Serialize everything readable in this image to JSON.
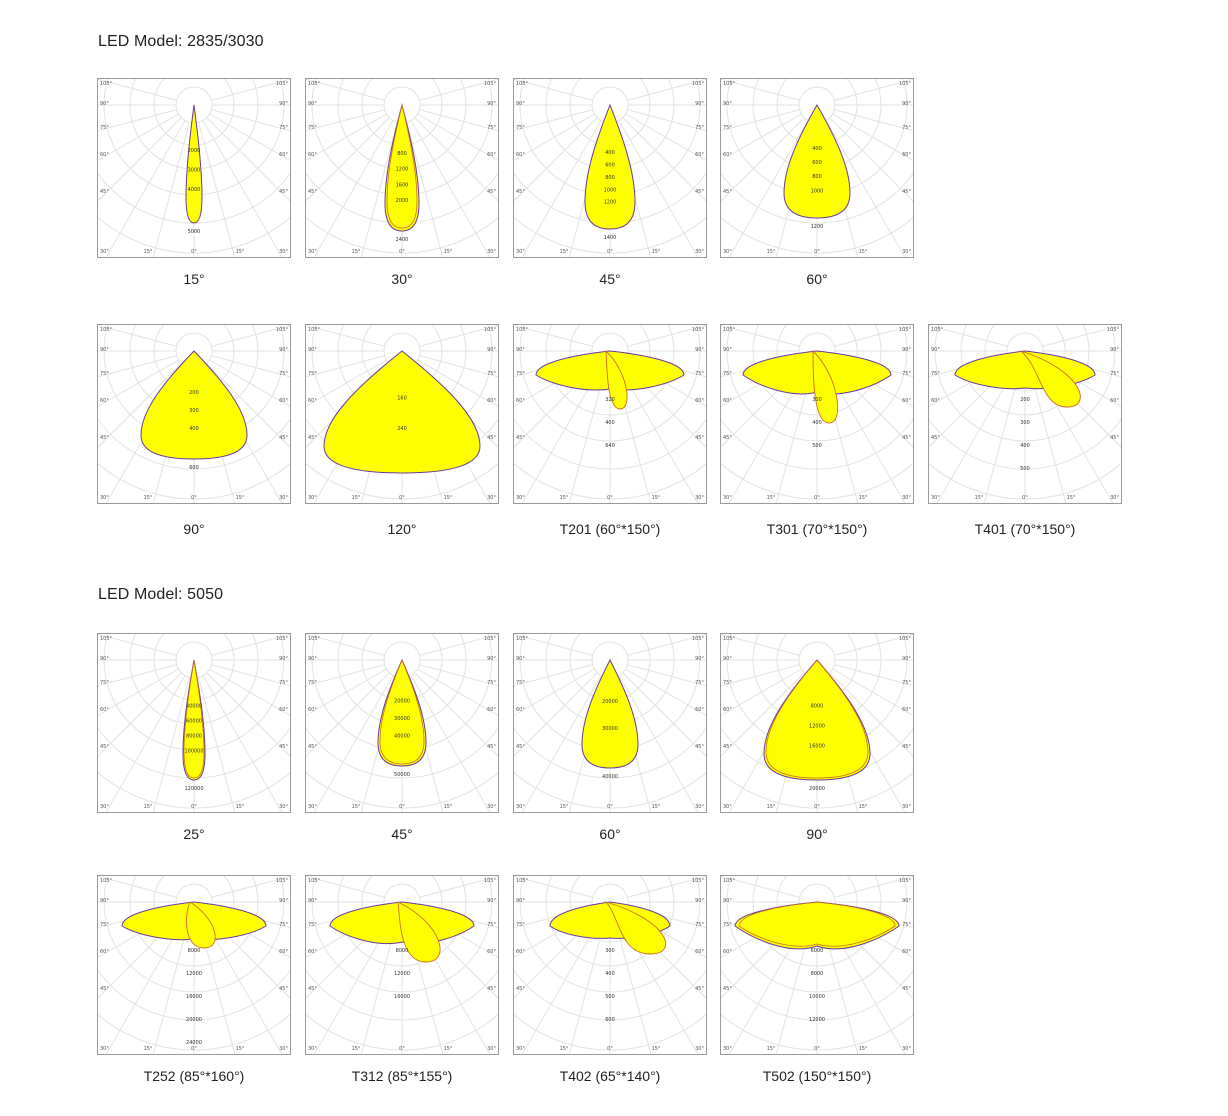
{
  "sections": [
    {
      "title": "LED Model: 2835/3030",
      "rows": [
        [
          {
            "caption": "15°",
            "shape": "beam",
            "w": 8,
            "h": 118,
            "secondary": null,
            "values": [
              "2000",
              "3000",
              "4000"
            ],
            "outer_value": "5000"
          },
          {
            "caption": "30°",
            "shape": "beam",
            "w": 17,
            "h": 126,
            "secondary": {
              "w": 15,
              "h": 123
            },
            "values": [
              "800",
              "1200",
              "1600",
              "2000"
            ],
            "outer_value": "2400"
          },
          {
            "caption": "45°",
            "shape": "beam",
            "w": 25,
            "h": 124,
            "secondary": null,
            "values": [
              "400",
              "600",
              "800",
              "1000",
              "1200"
            ],
            "outer_value": "1400"
          },
          {
            "caption": "60°",
            "shape": "beam",
            "w": 33,
            "h": 113,
            "secondary": null,
            "values": [
              "400",
              "600",
              "800",
              "1000"
            ],
            "outer_value": "1200"
          }
        ],
        [
          {
            "caption": "90°",
            "shape": "beam",
            "w": 53,
            "h": 108,
            "secondary": null,
            "values": [
              "200",
              "300",
              "400"
            ],
            "outer_value": "600"
          },
          {
            "caption": "120°",
            "shape": "beam",
            "w": 78,
            "h": 122,
            "secondary": null,
            "values": [
              "160",
              "240"
            ],
            "outer_value": ""
          },
          {
            "caption": "T201 (60°*150°)",
            "shape": "batwing",
            "spread": 74,
            "depth": 16,
            "lobe": {
              "dx": 10,
              "w": 13,
              "h": 58
            },
            "values": [
              "320",
              "400",
              "640"
            ],
            "outer_value": ""
          },
          {
            "caption": "T301 (70°*150°)",
            "shape": "batwing",
            "spread": 74,
            "depth": 22,
            "lobe": {
              "dx": 12,
              "w": 16,
              "h": 72
            },
            "values": [
              "300",
              "400",
              "500"
            ],
            "outer_value": ""
          },
          {
            "caption": "T401 (70°*150°)",
            "shape": "batwing",
            "spread": 70,
            "depth": 14,
            "lobe": {
              "dx": 42,
              "w": 26,
              "h": 56
            },
            "values": [
              "200",
              "300",
              "400",
              "500"
            ],
            "outer_value": ""
          }
        ]
      ]
    },
    {
      "title": "LED Model: 5050",
      "rows": [
        [
          {
            "caption": "25°",
            "shape": "beam",
            "w": 11,
            "h": 120,
            "secondary": {
              "w": 10,
              "h": 118
            },
            "values": [
              "40000",
              "60000",
              "80000",
              "100000"
            ],
            "outer_value": "120000"
          },
          {
            "caption": "45°",
            "shape": "beam",
            "w": 24,
            "h": 106,
            "secondary": {
              "w": 22,
              "h": 104
            },
            "values": [
              "20000",
              "30000",
              "40000"
            ],
            "outer_value": "50000"
          },
          {
            "caption": "60°",
            "shape": "beam",
            "w": 28,
            "h": 108,
            "secondary": null,
            "values": [
              "20000",
              "30000"
            ],
            "outer_value": "40000"
          },
          {
            "caption": "90°",
            "shape": "beam",
            "w": 53,
            "h": 120,
            "secondary": {
              "w": 51,
              "h": 118
            },
            "values": [
              "8000",
              "12000",
              "16000"
            ],
            "outer_value": "20000"
          }
        ],
        [
          {
            "caption": "T252 (85°*160°)",
            "shape": "batwing",
            "spread": 72,
            "depth": 14,
            "lobe": {
              "dx": 10,
              "w": 20,
              "h": 46
            },
            "values": [
              "8000",
              "12000",
              "16000",
              "20000",
              "24000"
            ],
            "outer_value": ""
          },
          {
            "caption": "T312 (85°*155°)",
            "shape": "batwing",
            "spread": 72,
            "depth": 20,
            "lobe": {
              "dx": 24,
              "w": 26,
              "h": 60
            },
            "values": [
              "8000",
              "12000",
              "16000"
            ],
            "outer_value": ""
          },
          {
            "caption": "T402 (65°*140°)",
            "shape": "batwing",
            "spread": 60,
            "depth": 12,
            "lobe": {
              "dx": 40,
              "w": 30,
              "h": 52
            },
            "values": [
              "300",
              "400",
              "500",
              "600"
            ],
            "outer_value": ""
          },
          {
            "caption": "T502 (150°*150°)",
            "shape": "batwing",
            "spread": 82,
            "depth": 28,
            "lobe": {
              "dx": 0,
              "w": 0,
              "h": 0
            },
            "values": [
              "6000",
              "8000",
              "10000",
              "12000"
            ],
            "outer_value": ""
          }
        ]
      ]
    }
  ],
  "angle_labels": {
    "side": [
      "105°",
      "90°",
      "75°",
      "60°",
      "45°"
    ],
    "bottom": [
      "30°",
      "15°",
      "0°",
      "15°",
      "30°"
    ]
  },
  "colors": {
    "fill": "#ffff00",
    "outline": "#6a3aa0",
    "outline2": "#c9701e",
    "grid": "#e3e3e3",
    "border": "#9a9a9a"
  }
}
